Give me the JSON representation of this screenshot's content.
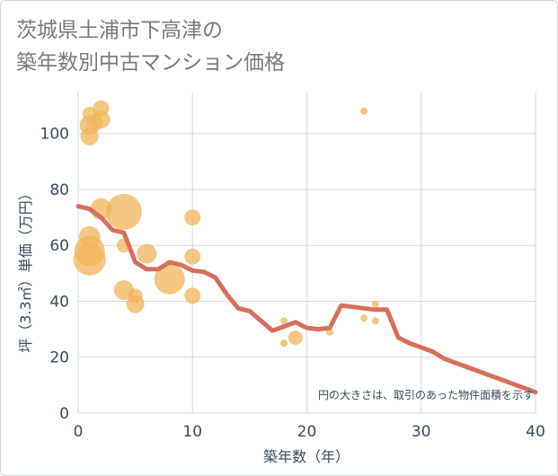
{
  "title_line1": "茨城県土浦市下高津の",
  "title_line2": "築年数別中古マンション価格",
  "chart_data": {
    "type": "scatter",
    "xlabel": "築年数（年）",
    "ylabel": "坪（3.3㎡）単価（万円）",
    "xlim": [
      0,
      40
    ],
    "ylim": [
      0,
      115
    ],
    "xticks": [
      0,
      10,
      20,
      30,
      40
    ],
    "yticks": [
      0,
      20,
      40,
      60,
      80,
      100
    ],
    "annotation": "円の大きさは、取引のあった物件面積を示す",
    "colors": {
      "bubble": "#f0b45a",
      "line": "#d6705a",
      "grid": "#d3dbe2",
      "axis_text": "#3c4a5a"
    },
    "bubbles": [
      {
        "x": 1,
        "y": 107,
        "size": 8
      },
      {
        "x": 2,
        "y": 109,
        "size": 9
      },
      {
        "x": 1,
        "y": 103,
        "size": 11
      },
      {
        "x": 1.5,
        "y": 104,
        "size": 9
      },
      {
        "x": 2,
        "y": 105,
        "size": 10
      },
      {
        "x": 1,
        "y": 99,
        "size": 10
      },
      {
        "x": 2,
        "y": 73,
        "size": 12
      },
      {
        "x": 4,
        "y": 72,
        "size": 20
      },
      {
        "x": 1,
        "y": 63,
        "size": 12
      },
      {
        "x": 1,
        "y": 58,
        "size": 17
      },
      {
        "x": 1,
        "y": 55,
        "size": 18
      },
      {
        "x": 4,
        "y": 60,
        "size": 8
      },
      {
        "x": 6,
        "y": 57,
        "size": 11
      },
      {
        "x": 4,
        "y": 44,
        "size": 11
      },
      {
        "x": 5,
        "y": 42,
        "size": 8
      },
      {
        "x": 5,
        "y": 39,
        "size": 10
      },
      {
        "x": 8,
        "y": 48,
        "size": 17
      },
      {
        "x": 10,
        "y": 70,
        "size": 9
      },
      {
        "x": 10,
        "y": 56,
        "size": 9
      },
      {
        "x": 10,
        "y": 42,
        "size": 9
      },
      {
        "x": 18,
        "y": 33,
        "size": 4
      },
      {
        "x": 18,
        "y": 25,
        "size": 4
      },
      {
        "x": 19,
        "y": 27,
        "size": 8
      },
      {
        "x": 22,
        "y": 29,
        "size": 4
      },
      {
        "x": 25,
        "y": 108,
        "size": 4
      },
      {
        "x": 25,
        "y": 34,
        "size": 4
      },
      {
        "x": 26,
        "y": 39,
        "size": 4
      },
      {
        "x": 26,
        "y": 33,
        "size": 4
      }
    ],
    "trend": {
      "x": [
        0,
        1,
        2,
        3,
        4,
        5,
        6,
        7,
        8,
        9,
        10,
        11,
        12,
        13,
        14,
        15,
        16,
        17,
        18,
        19,
        20,
        21,
        22,
        23,
        24,
        25,
        26,
        27,
        28,
        29,
        30,
        31,
        32,
        33,
        34,
        35,
        36,
        37,
        38,
        39,
        40
      ],
      "y": [
        74,
        73,
        70,
        65.5,
        64.5,
        54,
        51.5,
        51.5,
        54,
        53,
        51,
        50.5,
        48.5,
        42.5,
        37.5,
        36.5,
        33,
        29.5,
        31,
        32.5,
        30.5,
        30,
        30.5,
        38.5,
        38,
        37.5,
        37,
        37,
        27,
        25,
        23.5,
        22,
        19.5,
        18,
        16.5,
        15,
        13.5,
        12,
        10.5,
        9,
        7.5
      ]
    }
  }
}
